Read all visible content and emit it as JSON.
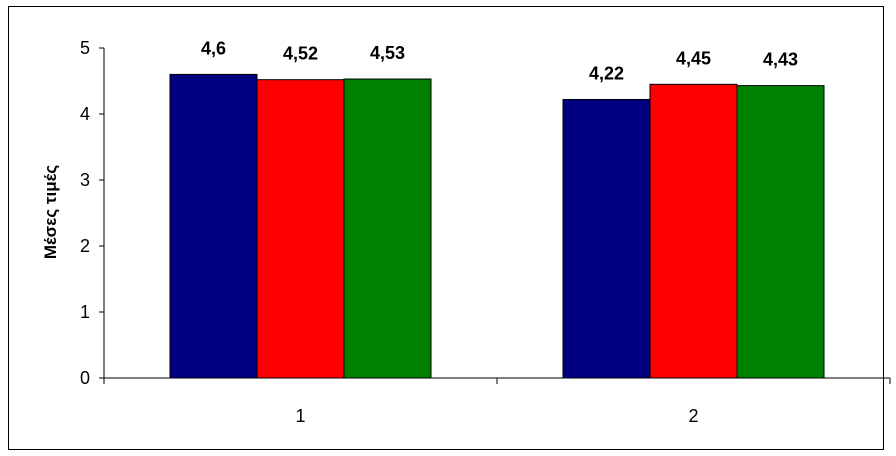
{
  "chart_data": {
    "type": "bar",
    "title": "",
    "xlabel": "",
    "ylabel": "Μέσες τιμές",
    "categories": [
      "1",
      "2"
    ],
    "series": [
      {
        "color": "#000080",
        "values": [
          4.6,
          4.22
        ],
        "labels": [
          "4,6",
          "4,22"
        ]
      },
      {
        "color": "#ff0000",
        "values": [
          4.52,
          4.45
        ],
        "labels": [
          "4,52",
          "4,45"
        ]
      },
      {
        "color": "#008000",
        "values": [
          4.53,
          4.43
        ],
        "labels": [
          "4,53",
          "4,43"
        ]
      }
    ],
    "ylim": [
      0,
      5
    ],
    "yticks": [
      "0",
      "1",
      "2",
      "3",
      "4",
      "5"
    ],
    "grid": false,
    "legend": "none"
  }
}
